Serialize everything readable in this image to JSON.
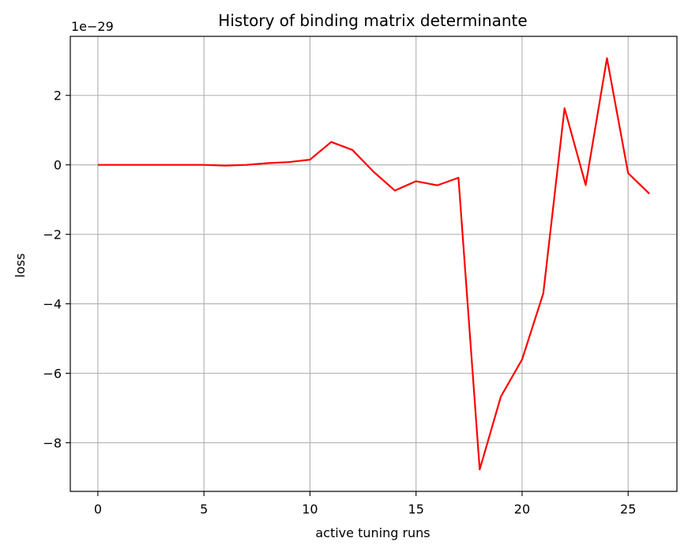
{
  "chart_data": {
    "type": "line",
    "title": "History of binding matrix determinante",
    "xlabel": "active tuning runs",
    "ylabel": "loss",
    "offset_label": "1e−29",
    "xlim": [
      -1.3,
      27.3
    ],
    "ylim": [
      -9.4,
      3.7
    ],
    "xticks": [
      0,
      5,
      10,
      15,
      20,
      25
    ],
    "xtick_labels": [
      "0",
      "5",
      "10",
      "15",
      "20",
      "25"
    ],
    "yticks": [
      -8,
      -6,
      -4,
      -2,
      0,
      2
    ],
    "ytick_labels": [
      "−8",
      "−6",
      "−4",
      "−2",
      "0",
      "2"
    ],
    "grid": true,
    "series": [
      {
        "color": "#ff0000",
        "x": [
          0,
          1,
          2,
          3,
          4,
          5,
          6,
          7,
          8,
          9,
          10,
          11,
          12,
          13,
          14,
          15,
          16,
          17,
          18,
          19,
          20,
          21,
          22,
          23,
          24,
          25,
          26
        ],
        "y": [
          0.0,
          0.0,
          0.0,
          0.0,
          0.0,
          0.0,
          -0.02,
          0.0,
          0.05,
          0.08,
          0.15,
          0.66,
          0.43,
          -0.2,
          -0.74,
          -0.47,
          -0.59,
          -0.37,
          -8.77,
          -6.67,
          -5.6,
          -3.7,
          1.63,
          -0.58,
          3.07,
          -0.24,
          -0.83
        ]
      }
    ]
  }
}
